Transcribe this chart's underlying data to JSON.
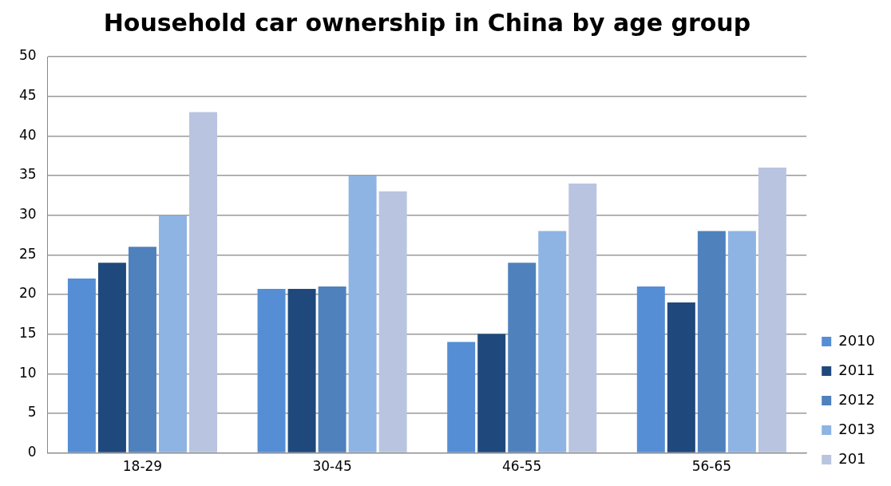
{
  "chart_data": {
    "type": "bar",
    "title": "Household car ownership in China by age group",
    "categories": [
      "18-29",
      "30-45",
      "46-55",
      "56-65"
    ],
    "series": [
      {
        "name": "2010",
        "color": "#558ed5",
        "values": [
          22,
          20.7,
          14,
          21
        ]
      },
      {
        "name": "2011",
        "color": "#1f497d",
        "values": [
          24,
          20.7,
          15,
          19
        ]
      },
      {
        "name": "2012",
        "color": "#4f81bd",
        "values": [
          26,
          21,
          24,
          28
        ]
      },
      {
        "name": "2013",
        "color": "#8eb4e3",
        "values": [
          30,
          35,
          28,
          28
        ]
      },
      {
        "name": "201",
        "color": "#b9c4e0",
        "values": [
          43,
          33,
          34,
          36
        ]
      }
    ],
    "ylim": [
      0,
      50
    ],
    "yticks": [
      0,
      5,
      10,
      15,
      20,
      25,
      30,
      35,
      40,
      45,
      50
    ],
    "grid": "y",
    "legend": "right"
  }
}
